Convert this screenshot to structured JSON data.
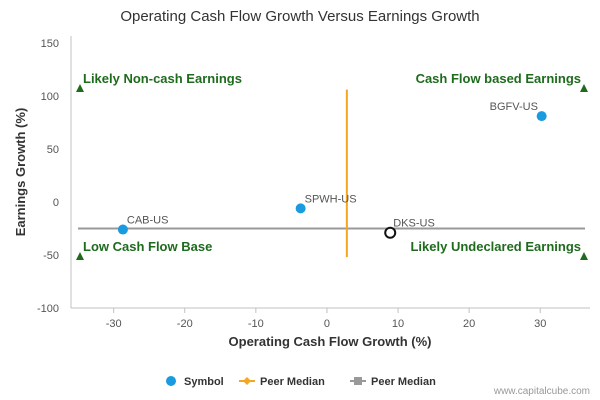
{
  "chart_data": {
    "type": "scatter",
    "title": "Operating Cash Flow Growth Versus Earnings Growth",
    "xlabel": "Operating Cash Flow Growth (%)",
    "ylabel": "Earnings Growth (%)",
    "xlim": [
      -36,
      37
    ],
    "ylim": [
      -100,
      150
    ],
    "xticks": [
      -30,
      -20,
      -10,
      0,
      10,
      20,
      30
    ],
    "xtick_labels": [
      "-30",
      "-20",
      "-10",
      "0",
      "10",
      "20",
      "30"
    ],
    "yticks": [
      -100,
      -50,
      0,
      50,
      100,
      150
    ],
    "ytick_labels": [
      "-100",
      "-50",
      "0",
      "50",
      "100",
      "150"
    ],
    "points": [
      {
        "label": "CAB-US",
        "x": -28.7,
        "y": -26,
        "style": "filled"
      },
      {
        "label": "SPWH-US",
        "x": -3.7,
        "y": -6,
        "style": "filled"
      },
      {
        "label": "BGFV-US",
        "x": 30.2,
        "y": 81,
        "style": "filled"
      },
      {
        "label": "DKS-US",
        "x": 8.9,
        "y": -29,
        "style": "hollow"
      }
    ],
    "peer_median_x": 2.8,
    "peer_median_y": -25,
    "quadrants": [
      {
        "text": "Likely Non-cash Earnings",
        "pos": "top-left"
      },
      {
        "text": "Cash Flow based Earnings",
        "pos": "top-right"
      },
      {
        "text": "Low Cash Flow Base",
        "pos": "bottom-left"
      },
      {
        "text": "Likely Undeclared Earnings",
        "pos": "bottom-right"
      }
    ],
    "legend": [
      {
        "label": "Symbol",
        "marker": "circle",
        "color": "#1a9be0"
      },
      {
        "label": "Peer Median",
        "marker": "diamond-line",
        "color": "#f5a623"
      },
      {
        "label": "Peer Median",
        "marker": "square-line",
        "color": "#999999"
      }
    ],
    "legend_position": "bottom-center",
    "grid": false,
    "colors": {
      "point": "#1a9be0",
      "vline": "#f5a623",
      "hline": "#999999",
      "quadrant_text": "#1e6b1e",
      "triangle": "#1e6b1e"
    }
  },
  "credit": "www.capitalcube.com"
}
